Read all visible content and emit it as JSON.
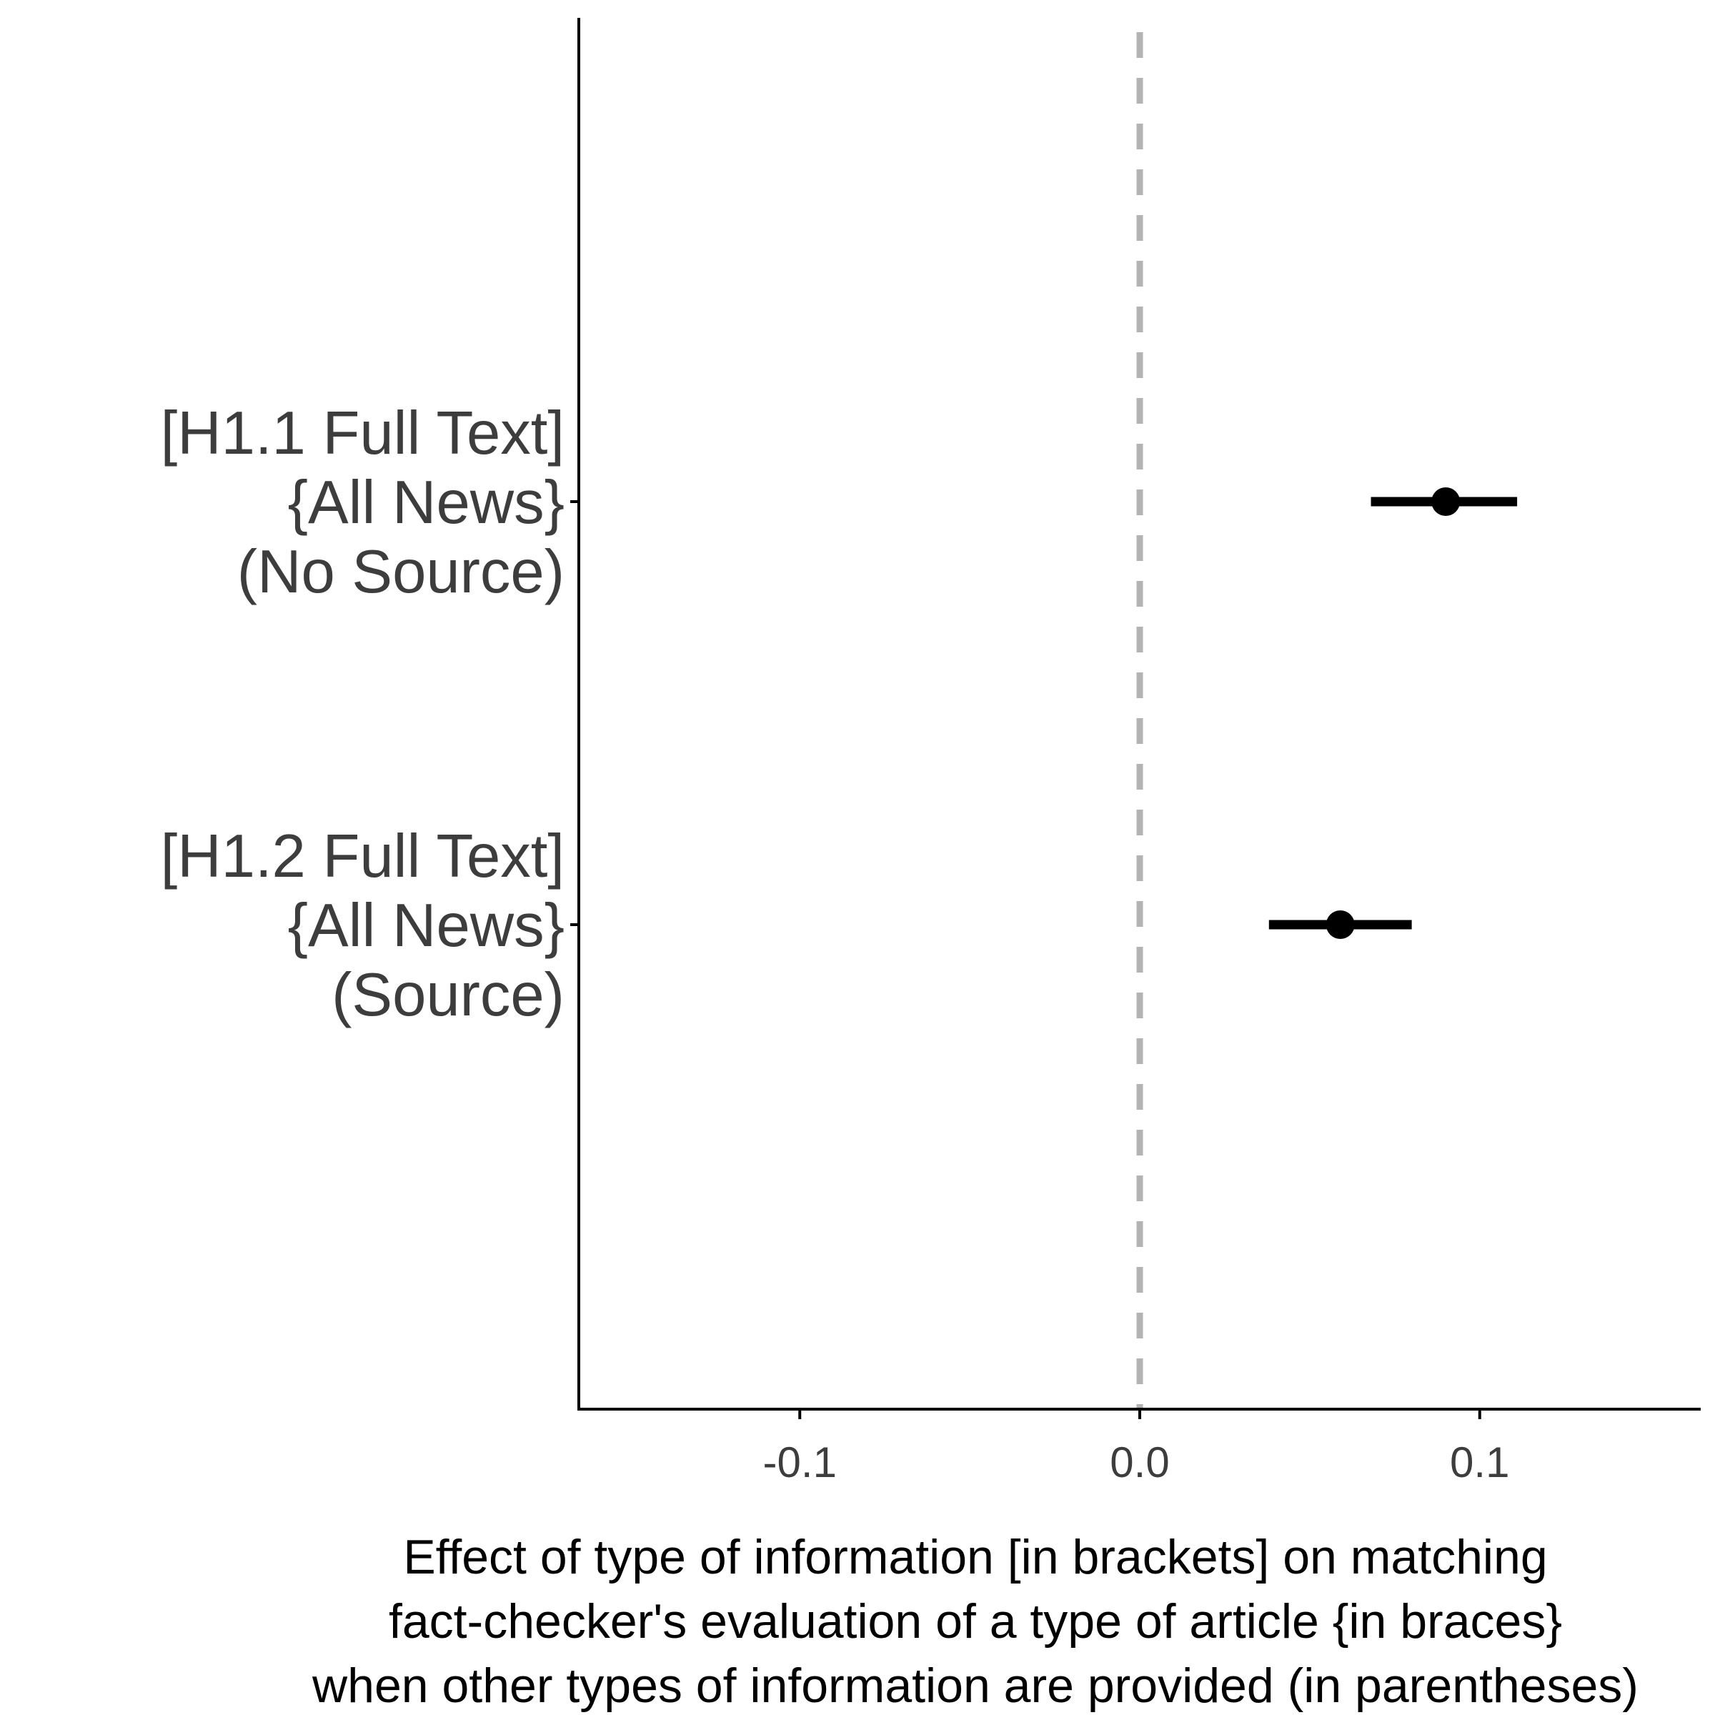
{
  "chart_data": {
    "type": "scatter",
    "subtype": "coefficient-plot",
    "title": "",
    "xlabel_lines": [
      "Effect of type of information [in brackets] on matching",
      "fact-checker's evaluation of a type of article {in braces}",
      "when other types of information are provided (in parentheses)"
    ],
    "ylabel": "",
    "xlim": [
      -0.165,
      0.165
    ],
    "xticks": [
      -0.1,
      0.0,
      0.1
    ],
    "xtick_labels": [
      "-0.1",
      "0.0",
      "0.1"
    ],
    "reference_line": {
      "x": 0.0,
      "style": "dashed",
      "color": "#b3b3b3"
    },
    "grid": false,
    "legend": "none",
    "colors": {
      "point": "#000000",
      "axis": "#000000",
      "label": "#3d3d3d"
    },
    "categories": [
      {
        "label_lines": [
          "[H1.1 Full Text]",
          "{All News}",
          "(No Source)"
        ],
        "estimate": 0.09,
        "ci_low": 0.068,
        "ci_high": 0.111
      },
      {
        "label_lines": [
          "[H1.2 Full Text]",
          "{All News}",
          "(Source)"
        ],
        "estimate": 0.059,
        "ci_low": 0.038,
        "ci_high": 0.08
      }
    ]
  }
}
